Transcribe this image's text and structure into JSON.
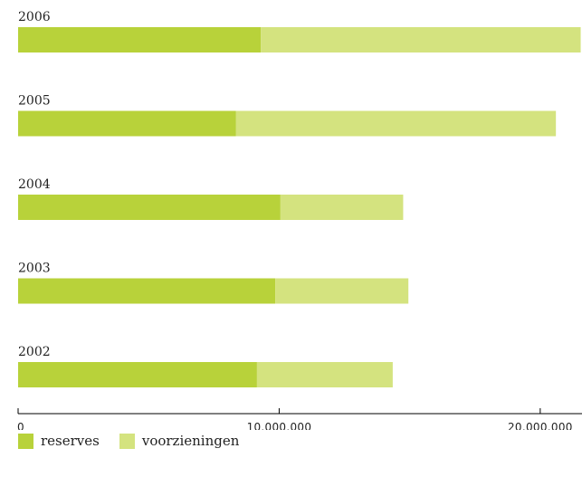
{
  "chart_data": {
    "type": "bar",
    "orientation": "horizontal",
    "stacked": true,
    "categories": [
      "2006",
      "2005",
      "2004",
      "2003",
      "2002"
    ],
    "series": [
      {
        "name": "reserves",
        "color": "#b8d23a",
        "values": [
          9300000,
          8350000,
          10050000,
          9850000,
          9150000
        ]
      },
      {
        "name": "voorzieningen",
        "color": "#d4e37f",
        "values": [
          12250000,
          12250000,
          4700000,
          5100000,
          5200000
        ]
      }
    ],
    "xlim": [
      0,
      21600000
    ],
    "ticks": [
      {
        "value": 0,
        "label": "0"
      },
      {
        "value": 10000000,
        "label": "10.000.000"
      },
      {
        "value": 20000000,
        "label": "20.000.000"
      }
    ],
    "title": "",
    "xlabel": "",
    "ylabel": "",
    "grid": false,
    "legend_position": "bottom-left"
  }
}
